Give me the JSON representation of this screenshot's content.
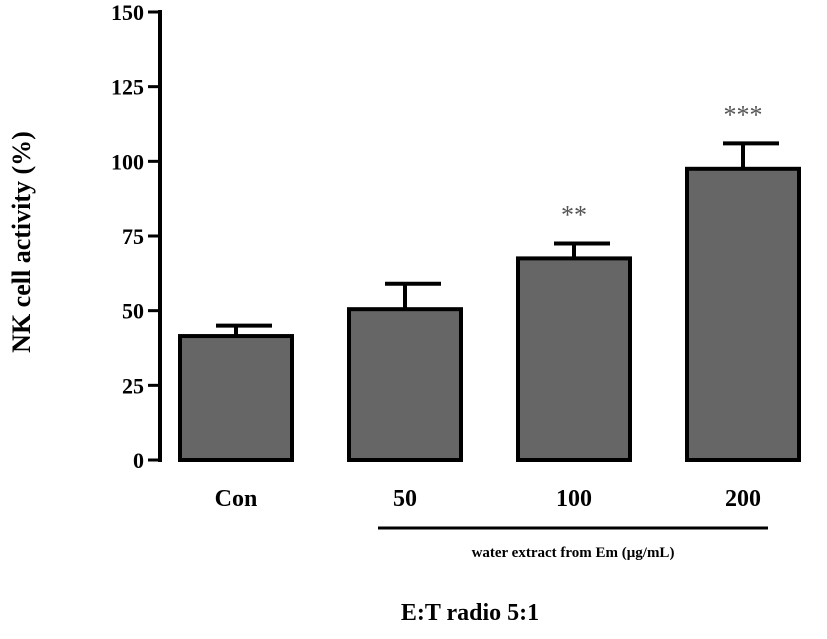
{
  "chart_data": {
    "type": "bar",
    "categories": [
      "Con",
      "50",
      "100",
      "200"
    ],
    "values": [
      41.5,
      50.5,
      67.5,
      97.5
    ],
    "errors": [
      3.5,
      8.5,
      5,
      8.5
    ],
    "significance": [
      "",
      "",
      "**",
      "***"
    ],
    "ylabel": "NK cell activity (%)",
    "yticks": [
      0,
      25,
      50,
      75,
      100,
      125,
      150
    ],
    "ylim": [
      0,
      150
    ],
    "group_label": "water extract from Em (μg/mL)",
    "caption": "E:T radio 5:1",
    "bar_color": "#666666",
    "grid": false
  }
}
